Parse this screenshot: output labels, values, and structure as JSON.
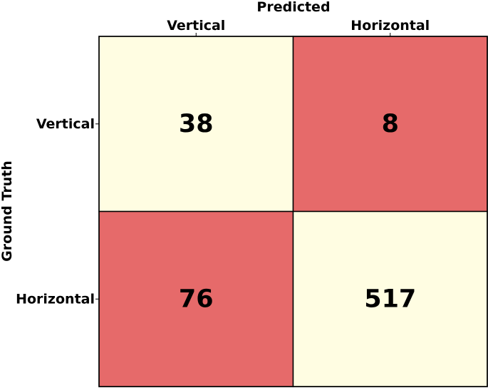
{
  "chart_data": {
    "type": "heatmap",
    "x_axis_title": "Predicted",
    "y_axis_title": "Ground Truth",
    "x_categories": [
      "Vertical",
      "Horizontal"
    ],
    "y_categories": [
      "Vertical",
      "Horizontal"
    ],
    "values": [
      [
        38,
        8
      ],
      [
        76,
        517
      ]
    ],
    "cell_colors": [
      [
        "#fffde2",
        "#e66a6a"
      ],
      [
        "#e66a6a",
        "#fffde2"
      ]
    ],
    "correct_color": "#fffde2",
    "incorrect_color": "#e66a6a",
    "legend": "none",
    "grid": false
  }
}
